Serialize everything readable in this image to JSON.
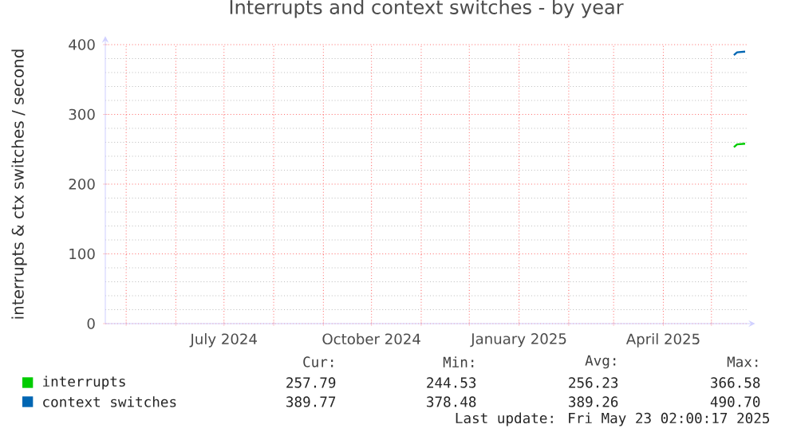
{
  "chart_data": {
    "type": "line",
    "title": "Interrupts and context switches - by year",
    "ylabel": "interrupts & ctx switches / second",
    "xlim": [
      "2024-04-18",
      "2025-05-23"
    ],
    "ylim": [
      0,
      400
    ],
    "xticks": [
      {
        "value": "2024-05-01",
        "label": null
      },
      {
        "value": "2024-06-01",
        "label": null
      },
      {
        "value": "2024-07-01",
        "label": "July 2024"
      },
      {
        "value": "2024-08-01",
        "label": null
      },
      {
        "value": "2024-09-01",
        "label": null
      },
      {
        "value": "2024-10-01",
        "label": "October 2024"
      },
      {
        "value": "2024-11-01",
        "label": null
      },
      {
        "value": "2024-12-01",
        "label": null
      },
      {
        "value": "2025-01-01",
        "label": "January 2025"
      },
      {
        "value": "2025-02-01",
        "label": null
      },
      {
        "value": "2025-03-01",
        "label": null
      },
      {
        "value": "2025-04-01",
        "label": "April 2025"
      },
      {
        "value": "2025-05-01",
        "label": null
      }
    ],
    "yticks": [
      0,
      100,
      200,
      300,
      400
    ],
    "grid": true,
    "legend": "bottom",
    "marker": "none",
    "line_style": "solid",
    "series": [
      {
        "name": "interrupts",
        "color": "#00cc00",
        "x": [
          "2025-05-15",
          "2025-05-17",
          "2025-05-22"
        ],
        "values": [
          253,
          257,
          258
        ]
      },
      {
        "name": "context switches",
        "color": "#0066b3",
        "x": [
          "2025-05-15",
          "2025-05-17",
          "2025-05-22"
        ],
        "values": [
          385,
          389,
          390
        ]
      }
    ],
    "annotations": [
      "Cur:",
      "Min:",
      "Avg:",
      "Max:",
      "257.79",
      "244.53",
      "256.23",
      "366.58",
      "389.77",
      "378.48",
      "389.26",
      "490.70",
      "Last update: Fri May 23 02:00:17 2025"
    ]
  }
}
